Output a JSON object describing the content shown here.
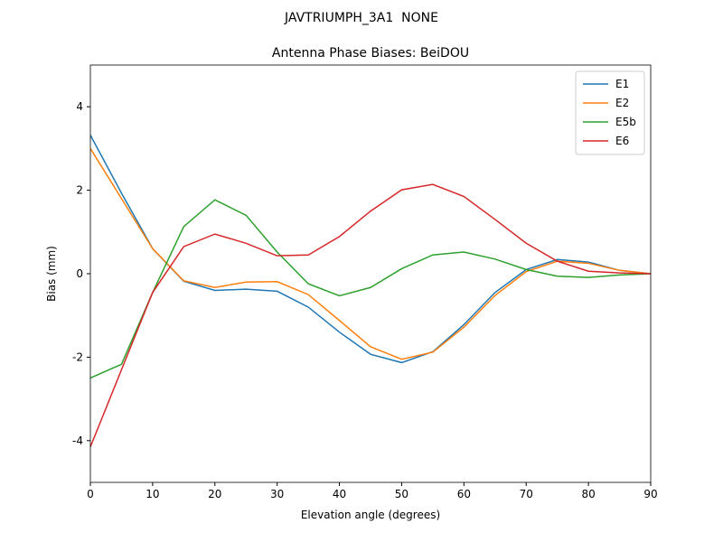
{
  "chart_data": {
    "type": "line",
    "suptitle": "JAVTRIUMPH_3A1  NONE",
    "title": "Antenna Phase Biases: BeiDOU",
    "xlabel": "Elevation angle (degrees)",
    "ylabel": "Bias (mm)",
    "x": [
      0,
      5,
      10,
      15,
      20,
      25,
      30,
      35,
      40,
      45,
      50,
      55,
      60,
      65,
      70,
      75,
      80,
      85,
      90
    ],
    "xlim": [
      0,
      90
    ],
    "xticks": [
      0,
      10,
      20,
      30,
      40,
      50,
      60,
      70,
      80,
      90
    ],
    "ylim": [
      -5,
      5
    ],
    "yticks": [
      -4,
      -2,
      0,
      2,
      4
    ],
    "legend": "upper right",
    "series": [
      {
        "name": "E1",
        "color": "#1f77b4",
        "values": [
          3.32,
          1.93,
          0.6,
          -0.18,
          -0.4,
          -0.37,
          -0.42,
          -0.8,
          -1.4,
          -1.93,
          -2.13,
          -1.87,
          -1.22,
          -0.45,
          0.1,
          0.34,
          0.28,
          0.08,
          0
        ]
      },
      {
        "name": "E2",
        "color": "#ff7f0e",
        "values": [
          3.0,
          1.8,
          0.6,
          -0.17,
          -0.33,
          -0.2,
          -0.19,
          -0.5,
          -1.12,
          -1.75,
          -2.05,
          -1.88,
          -1.28,
          -0.52,
          0.05,
          0.3,
          0.25,
          0.08,
          0
        ]
      },
      {
        "name": "E5b",
        "color": "#2ca02c",
        "values": [
          -2.5,
          -2.17,
          -0.45,
          1.13,
          1.77,
          1.4,
          0.52,
          -0.24,
          -0.53,
          -0.33,
          0.12,
          0.45,
          0.52,
          0.35,
          0.1,
          -0.06,
          -0.09,
          -0.03,
          0
        ]
      },
      {
        "name": "E6",
        "color": "#d62728",
        "values": [
          -4.15,
          -2.3,
          -0.45,
          0.65,
          0.95,
          0.73,
          0.43,
          0.45,
          0.89,
          1.5,
          2.01,
          2.14,
          1.85,
          1.3,
          0.73,
          0.3,
          0.06,
          0.02,
          0
        ]
      }
    ]
  }
}
